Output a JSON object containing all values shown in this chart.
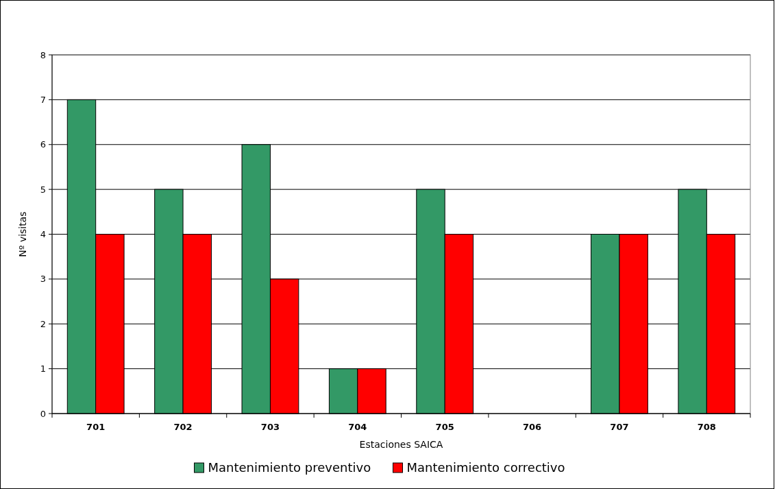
{
  "chart_data": {
    "type": "bar",
    "xlabel": "Estaciones SAICA",
    "ylabel": "Nº visitas",
    "categories": [
      "701",
      "702",
      "703",
      "704",
      "705",
      "706",
      "707",
      "708"
    ],
    "series": [
      {
        "name": "Mantenimiento preventivo",
        "color": "#339966",
        "values": [
          7,
          5,
          6,
          1,
          5,
          0,
          4,
          5
        ]
      },
      {
        "name": "Mantenimiento correctivo",
        "color": "#ff0000",
        "values": [
          4,
          4,
          3,
          1,
          4,
          0,
          4,
          4
        ]
      }
    ],
    "ylim": [
      0,
      8
    ],
    "yticks": [
      0,
      1,
      2,
      3,
      4,
      5,
      6,
      7,
      8
    ],
    "grid": "y",
    "legend": "bottom"
  }
}
